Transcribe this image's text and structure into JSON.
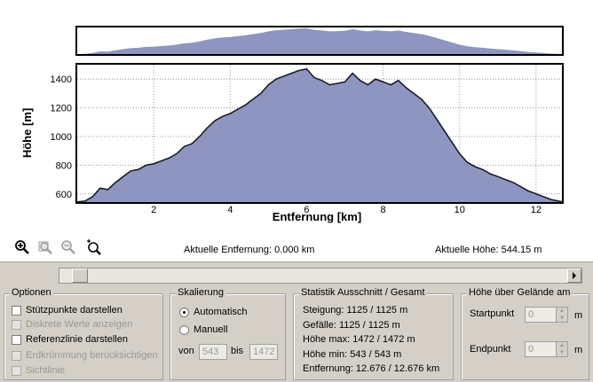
{
  "chart_data": {
    "type": "area",
    "xlabel": "Entfernung [km]",
    "ylabel": "Höhe [m]",
    "xlim": [
      0,
      12.676
    ],
    "ylim": [
      543,
      1500
    ],
    "x_ticks": [
      "2",
      "4",
      "6",
      "8",
      "10",
      "12"
    ],
    "y_ticks": [
      "600",
      "800",
      "1000",
      "1200",
      "1400"
    ],
    "grid": true,
    "fill_color": "#8e95c0",
    "line_color": "#1c1c2c",
    "series": [
      {
        "x": [
          0,
          0.2,
          0.4,
          0.6,
          0.8,
          1.0,
          1.2,
          1.4,
          1.6,
          1.8,
          2.0,
          2.2,
          2.4,
          2.6,
          2.8,
          3.0,
          3.2,
          3.4,
          3.6,
          3.8,
          4.0,
          4.2,
          4.4,
          4.6,
          4.8,
          5.0,
          5.2,
          5.4,
          5.6,
          5.8,
          6.0,
          6.2,
          6.4,
          6.6,
          6.8,
          7.0,
          7.2,
          7.4,
          7.6,
          7.8,
          8.0,
          8.2,
          8.4,
          8.6,
          8.8,
          9.0,
          9.2,
          9.4,
          9.6,
          9.8,
          10.0,
          10.2,
          10.4,
          10.6,
          10.8,
          11.0,
          11.2,
          11.4,
          11.6,
          11.8,
          12.0,
          12.2,
          12.4,
          12.676
        ],
        "y": [
          544,
          550,
          580,
          640,
          630,
          680,
          720,
          760,
          770,
          800,
          810,
          830,
          850,
          880,
          930,
          950,
          1000,
          1060,
          1110,
          1140,
          1160,
          1190,
          1220,
          1260,
          1300,
          1360,
          1400,
          1420,
          1440,
          1460,
          1470,
          1410,
          1390,
          1360,
          1370,
          1380,
          1440,
          1390,
          1360,
          1400,
          1380,
          1360,
          1390,
          1340,
          1300,
          1260,
          1200,
          1120,
          1040,
          960,
          880,
          820,
          790,
          770,
          740,
          720,
          700,
          680,
          650,
          620,
          600,
          580,
          560,
          545
        ]
      }
    ]
  },
  "overview": {
    "fill_color": "#8e95c0"
  },
  "toolbar": {
    "icons": [
      "zoom-in-icon",
      "zoom-window-icon",
      "zoom-out-icon",
      "zoom-reset-icon"
    ]
  },
  "status": {
    "distance": "Aktuelle Entfernung: 0.000 km",
    "height": "Aktuelle Höhe: 544.15 m"
  },
  "options": {
    "title": "Optionen",
    "items": [
      {
        "label": "Stützpunkte darstellen",
        "checked": false,
        "disabled": false
      },
      {
        "label": "Diskrete Werte anzeigen",
        "checked": false,
        "disabled": true
      },
      {
        "label": "Referenzlinie darstellen",
        "checked": false,
        "disabled": false
      },
      {
        "label": "Erdkrümmung berücksichtigen",
        "checked": false,
        "disabled": true
      },
      {
        "label": "Sichtlinie",
        "checked": false,
        "disabled": true
      }
    ]
  },
  "scaling": {
    "title": "Skalierung",
    "auto_label": "Automatisch",
    "manual_label": "Manuell",
    "from_label": "von",
    "from_value": "543",
    "to_label": "bis",
    "to_value": "1472"
  },
  "stats": {
    "title": "Statistik  Ausschnitt / Gesamt",
    "lines": [
      "Steigung: 1125 / 1125 m",
      "Gefälle: 1125 / 1125 m",
      "Höhe max: 1472 / 1472 m",
      "Höhe min: 543 / 543 m",
      "Entfernung: 12.676 / 12.676 km"
    ]
  },
  "ground": {
    "title": "Höhe über Gelände am",
    "start_label": "Startpunkt",
    "start_value": "0",
    "end_label": "Endpunkt",
    "end_value": "0",
    "unit": "m"
  }
}
